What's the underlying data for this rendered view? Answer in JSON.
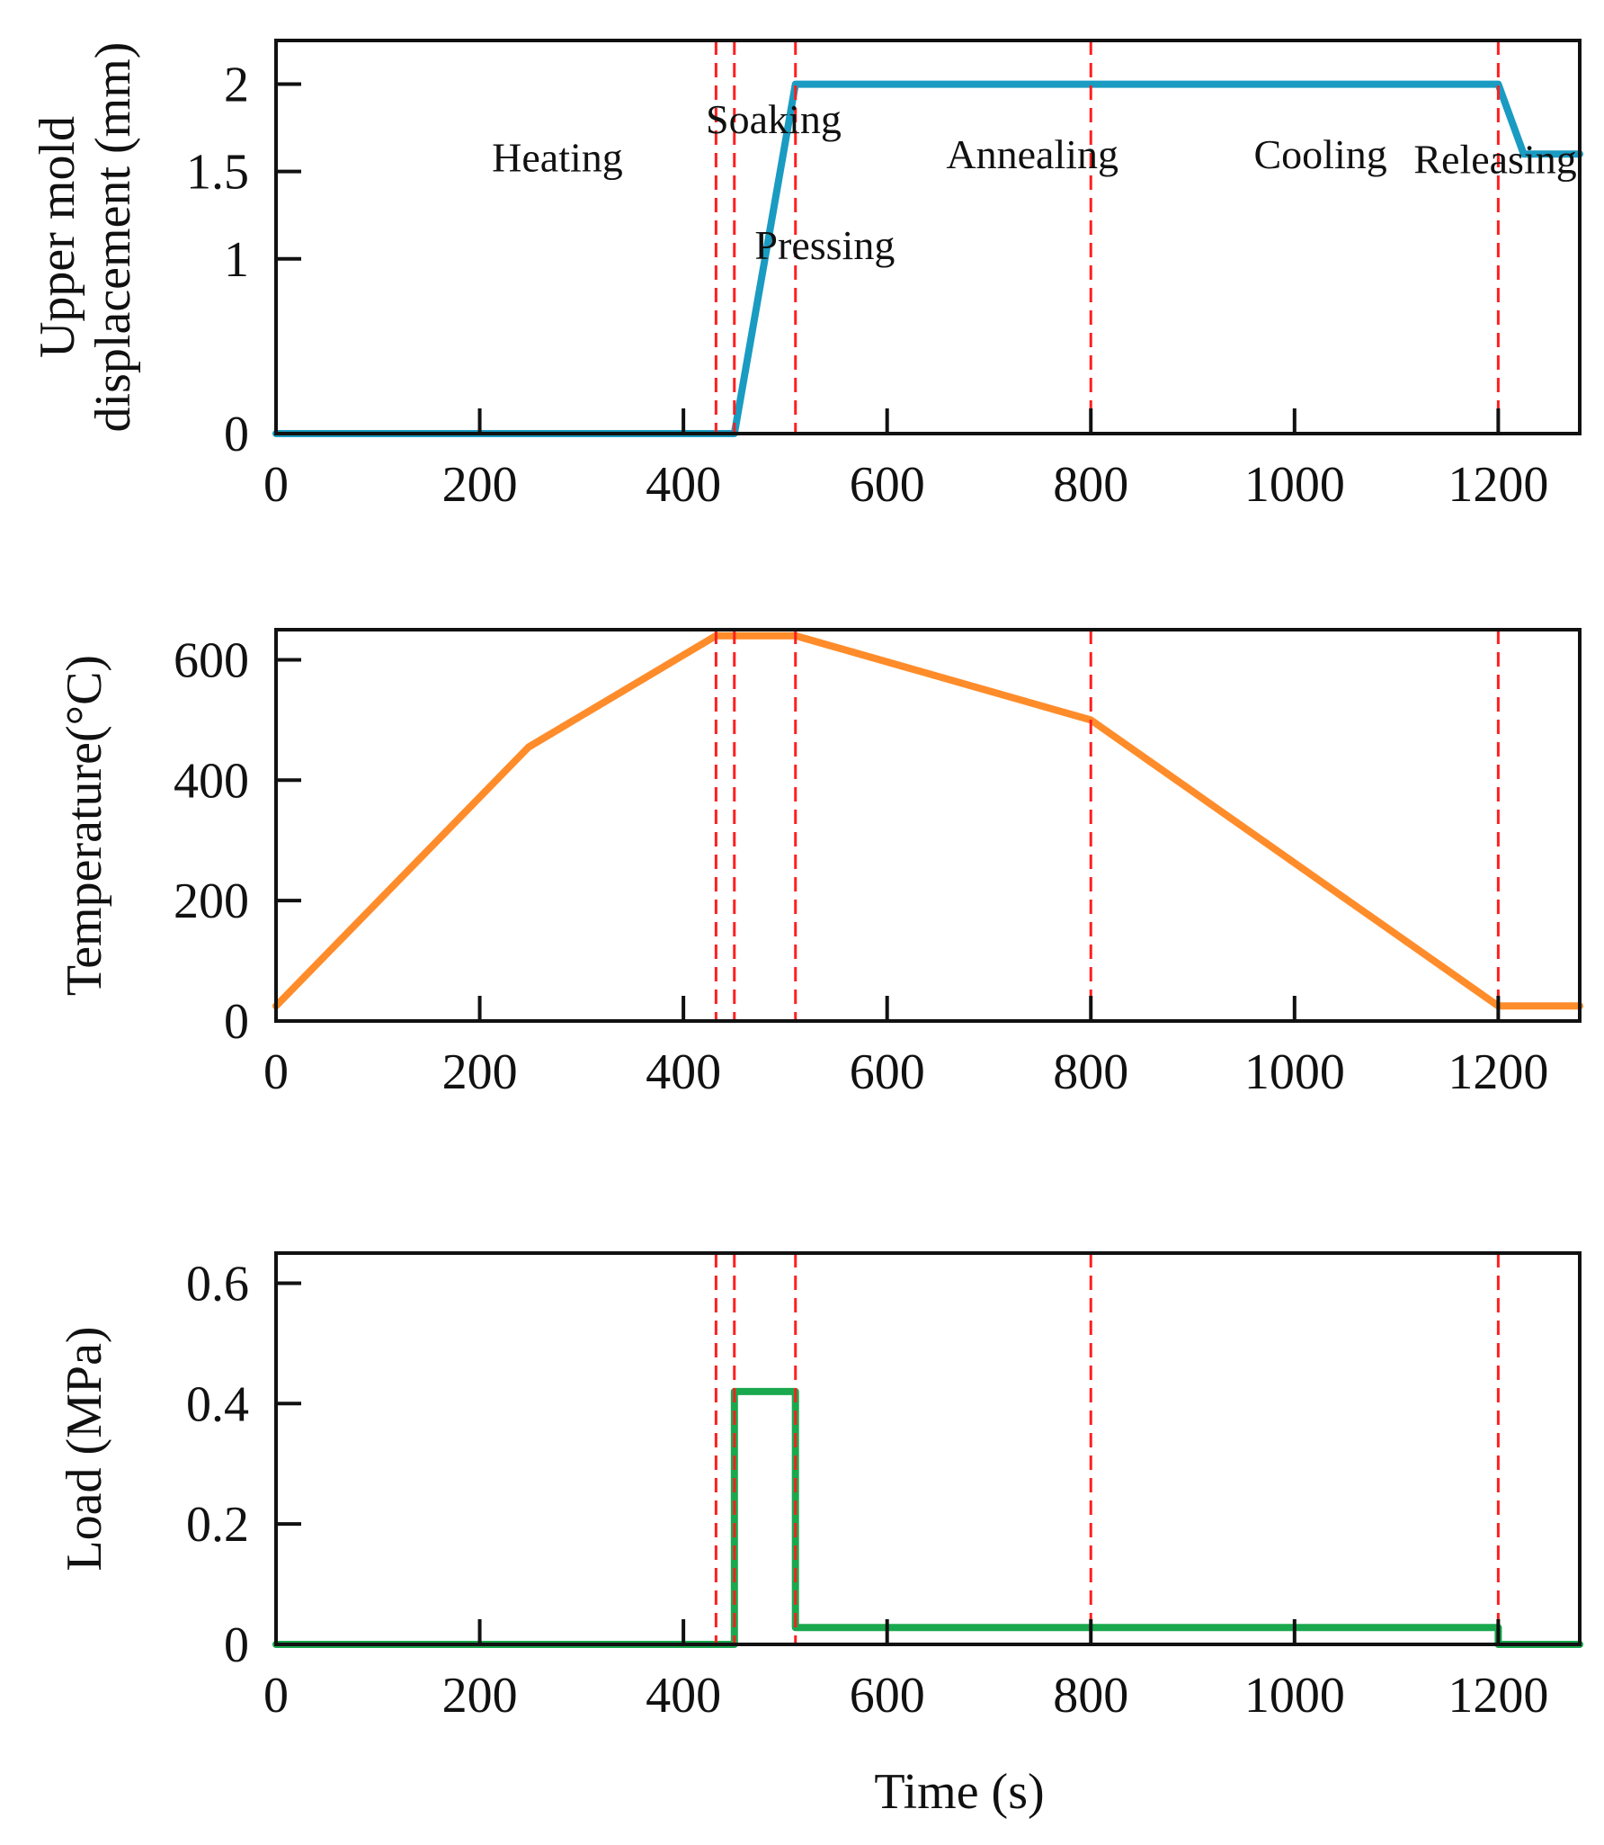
{
  "chart_data": [
    {
      "type": "line",
      "id": "displacement",
      "title": "",
      "xlabel": "",
      "ylabel_lines": [
        "Upper mold",
        "displacement (mm)"
      ],
      "xlim": [
        0,
        1280
      ],
      "ylim": [
        0,
        2.25
      ],
      "xticks": [
        0,
        200,
        400,
        600,
        800,
        1000,
        1200
      ],
      "xtick_labels": [
        "0",
        "200",
        "400",
        "600",
        "800",
        "1000",
        "1200"
      ],
      "yticks": [
        0,
        1,
        1.5,
        2
      ],
      "ytick_labels": [
        "0",
        "1",
        "1.5",
        "2"
      ],
      "grid": false,
      "series": [
        {
          "name": "Upper mold displacement",
          "color": "#1a9bc2",
          "x": [
            0,
            450,
            510,
            1200,
            1225,
            1280
          ],
          "y": [
            0,
            0,
            2,
            2,
            1.6,
            1.6
          ]
        }
      ],
      "annotations": [
        {
          "text": "Soaking",
          "x": 422,
          "y": 1.72
        },
        {
          "text": "Heating",
          "x": 212,
          "y": 1.5
        },
        {
          "text": "Pressing",
          "x": 470,
          "y": 1.0
        },
        {
          "text": "Annealing",
          "x": 658,
          "y": 1.52
        },
        {
          "text": "Cooling",
          "x": 960,
          "y": 1.52
        },
        {
          "text": "Releasing",
          "x": 1117,
          "y": 1.49
        }
      ]
    },
    {
      "type": "line",
      "id": "temperature",
      "title": "",
      "xlabel": "",
      "ylabel_lines": [
        "Temperature(°C)"
      ],
      "xlim": [
        0,
        1280
      ],
      "ylim": [
        0,
        650
      ],
      "xticks": [
        0,
        200,
        400,
        600,
        800,
        1000,
        1200
      ],
      "xtick_labels": [
        "0",
        "200",
        "400",
        "600",
        "800",
        "1000",
        "1200"
      ],
      "yticks": [
        0,
        200,
        400,
        600
      ],
      "ytick_labels": [
        "0",
        "200",
        "400",
        "600"
      ],
      "grid": false,
      "series": [
        {
          "name": "Temperature",
          "color": "#ff8c2a",
          "x": [
            0,
            248,
            432,
            510,
            800,
            1200,
            1280
          ],
          "y": [
            25,
            455,
            640,
            640,
            500,
            25,
            25
          ]
        }
      ],
      "annotations": []
    },
    {
      "type": "line",
      "id": "load",
      "title": "",
      "xlabel": "Time (s)",
      "ylabel_lines": [
        "Load (MPa)"
      ],
      "xlim": [
        0,
        1280
      ],
      "ylim": [
        0,
        0.65
      ],
      "xticks": [
        0,
        200,
        400,
        600,
        800,
        1000,
        1200
      ],
      "xtick_labels": [
        "0",
        "200",
        "400",
        "600",
        "800",
        "1000",
        "1200"
      ],
      "yticks": [
        0,
        0.2,
        0.4,
        0.6
      ],
      "ytick_labels": [
        "0",
        "0.2",
        "0.4",
        "0.6"
      ],
      "grid": false,
      "series": [
        {
          "name": "Load",
          "color": "#1aa84e",
          "x": [
            0,
            450,
            450,
            510,
            510,
            1200,
            1200,
            1280
          ],
          "y": [
            0,
            0,
            0.42,
            0.42,
            0.028,
            0.028,
            0,
            0
          ]
        }
      ],
      "annotations": []
    }
  ],
  "phase_boundaries": {
    "color": "#ff1f1f",
    "x": [
      432,
      450,
      510,
      800,
      1200
    ]
  }
}
